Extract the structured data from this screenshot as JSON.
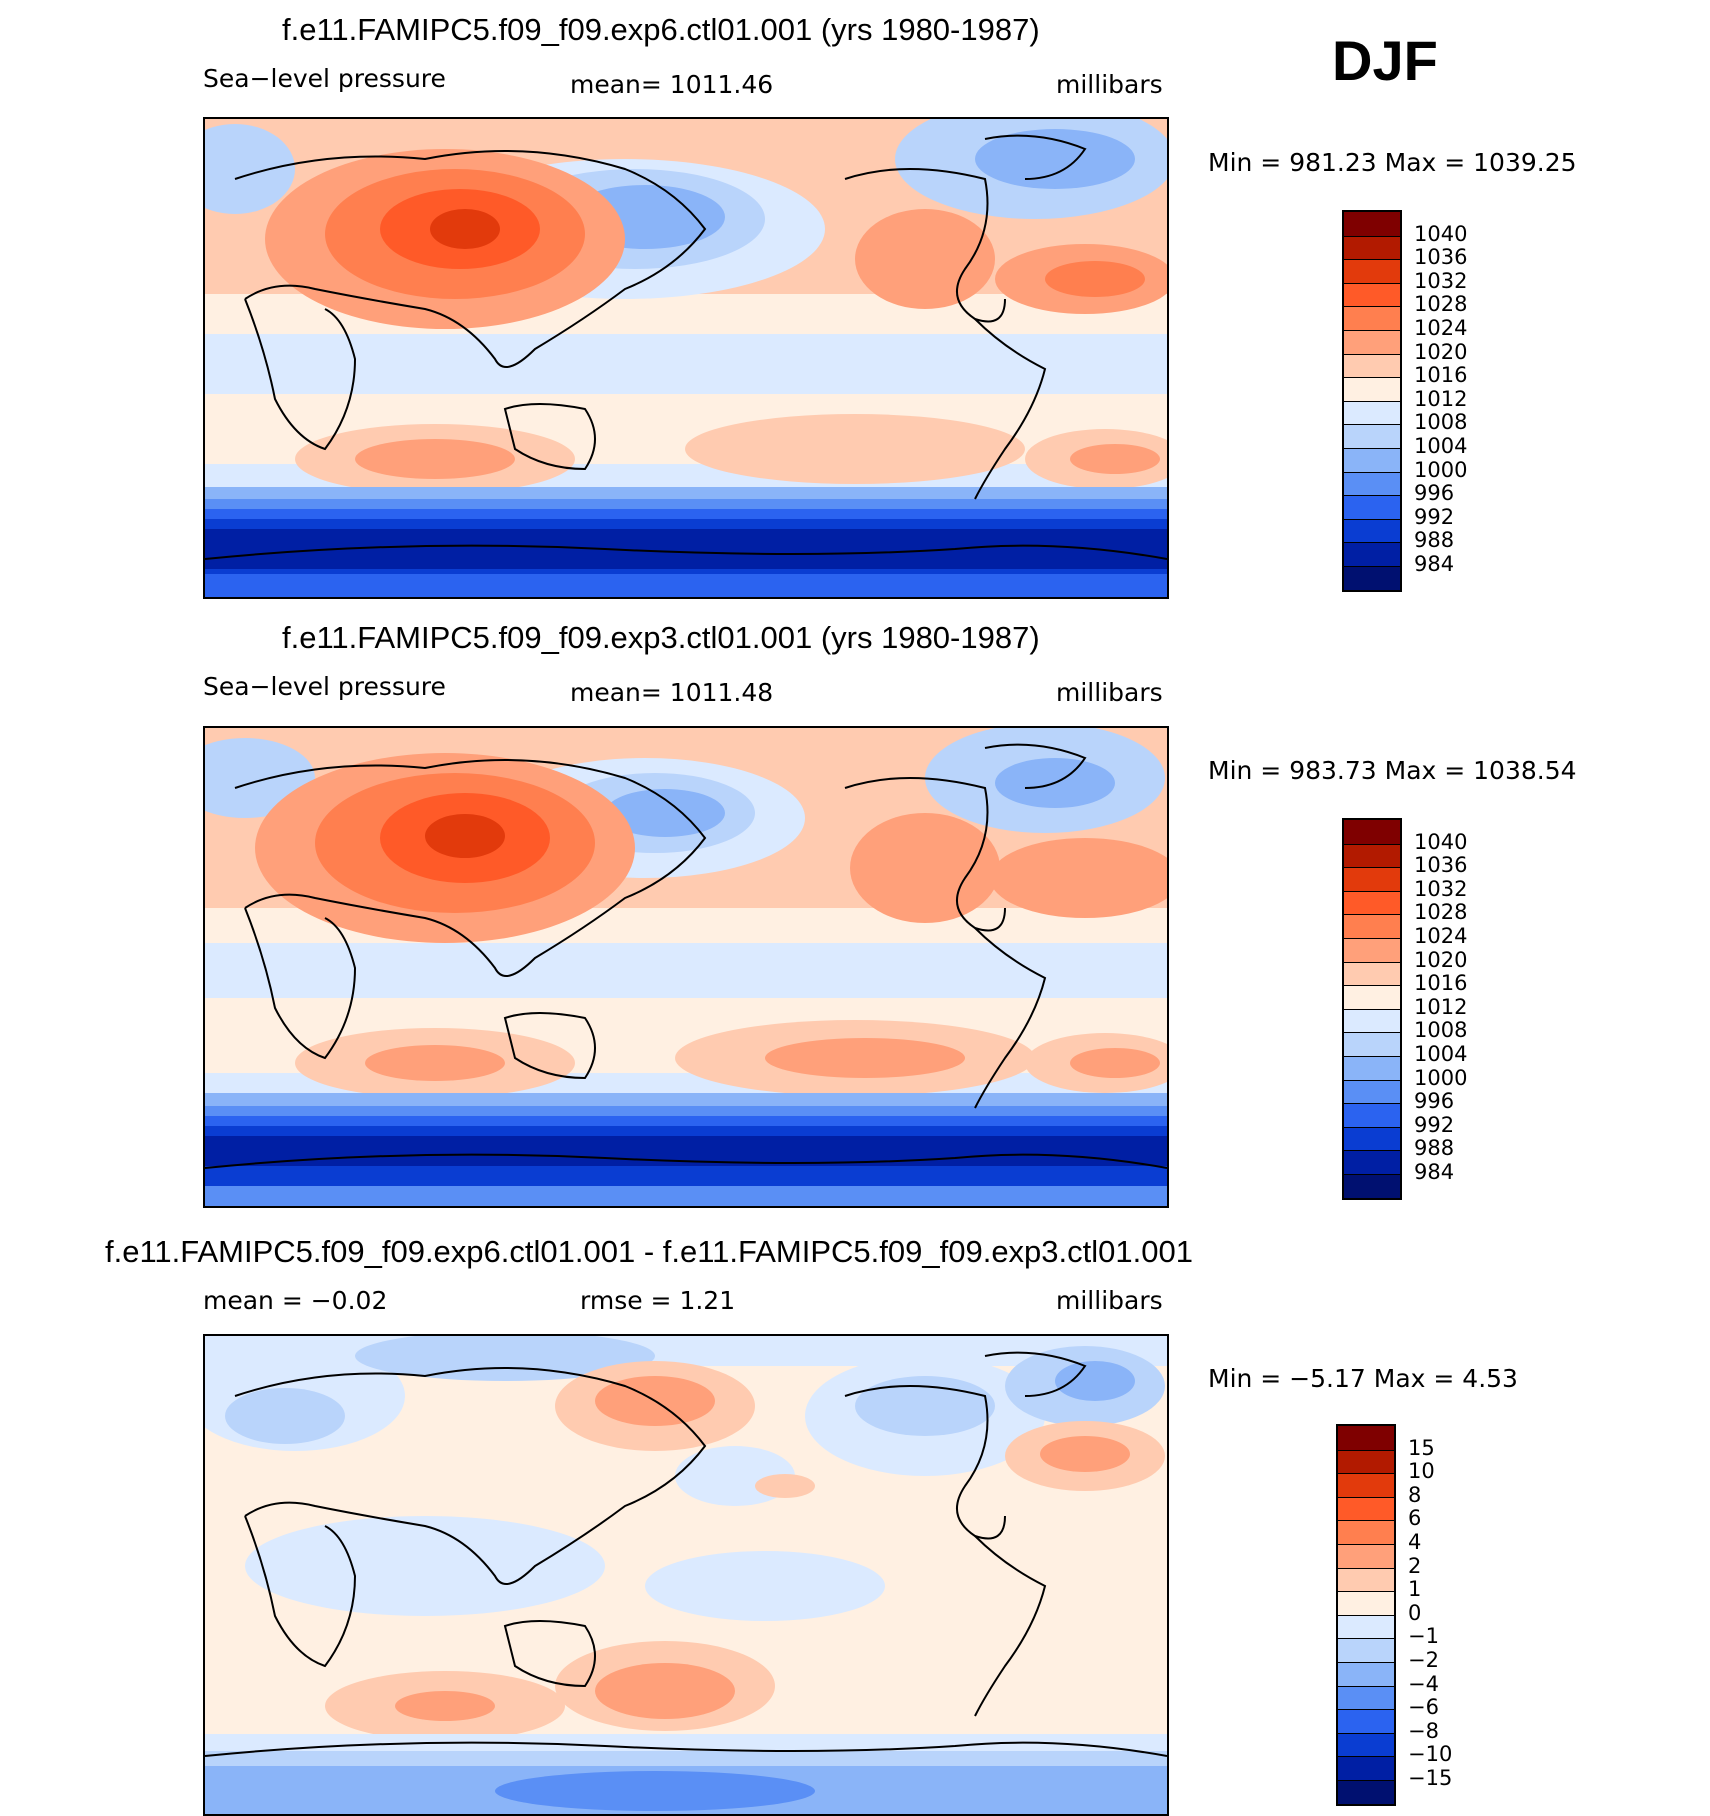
{
  "season": "DJF",
  "panels": [
    {
      "title": "f.e11.FAMIPC5.f09_f09.exp6.ctl01.001 (yrs 1980-1987)",
      "left_label": "Sea−level pressure",
      "center_label": "mean=  1011.46",
      "units": "millibars",
      "minmax": "Min  =  981.23  Max  =  1039.25"
    },
    {
      "title": "f.e11.FAMIPC5.f09_f09.exp3.ctl01.001 (yrs 1980-1987)",
      "left_label": "Sea−level pressure",
      "center_label": "mean=  1011.48",
      "units": "millibars",
      "minmax": "Min  =  983.73  Max  =  1038.54"
    },
    {
      "title": "f.e11.FAMIPC5.f09_f09.exp6.ctl01.001 - f.e11.FAMIPC5.f09_f09.exp3.ctl01.001",
      "left_label": "mean  =    −0.02",
      "center_label": "rmse  =     1.21",
      "units": "millibars",
      "minmax": "Min  =    −5.17  Max  =     4.53"
    }
  ],
  "legends": {
    "slp": {
      "labels": [
        "1040",
        "1036",
        "1032",
        "1028",
        "1024",
        "1020",
        "1016",
        "1012",
        "1008",
        "1004",
        "1000",
        "996",
        "992",
        "988",
        "984"
      ],
      "colors": [
        "#7f0000",
        "#b21a00",
        "#e23a0c",
        "#ff5a28",
        "#ff7f4f",
        "#ffa07a",
        "#ffcbb0",
        "#fff0e2",
        "#dbeaff",
        "#b9d4fb",
        "#8ab4f8",
        "#5a8ff5",
        "#2b63f0",
        "#0a3dd2",
        "#001fa4",
        "#001070"
      ]
    },
    "diff": {
      "labels": [
        "15",
        "10",
        "8",
        "6",
        "4",
        "2",
        "1",
        "0",
        "−1",
        "−2",
        "−4",
        "−6",
        "−8",
        "−10",
        "−15"
      ],
      "colors": [
        "#7f0000",
        "#b21a00",
        "#e23a0c",
        "#ff5a28",
        "#ff7f4f",
        "#ffa07a",
        "#ffcbb0",
        "#fff0e2",
        "#dbeaff",
        "#b9d4fb",
        "#8ab4f8",
        "#5a8ff5",
        "#2b63f0",
        "#0a3dd2",
        "#001fa4",
        "#001070"
      ]
    }
  },
  "colors": {
    "sea_neutral": "#fff0e2",
    "light_blue": "#dbeaff",
    "pale_blue": "#b9d4fb",
    "mid_blue": "#8ab4f8",
    "blue": "#5a8ff5",
    "strong_blue": "#2b63f0",
    "deep_blue": "#0a3dd2",
    "navy": "#001fa4",
    "peach": "#ffcbb0",
    "salmon": "#ffa07a",
    "orange": "#ff7f4f",
    "red_orange": "#ff5a28",
    "red": "#e23a0c",
    "dark_red": "#b21a00"
  }
}
